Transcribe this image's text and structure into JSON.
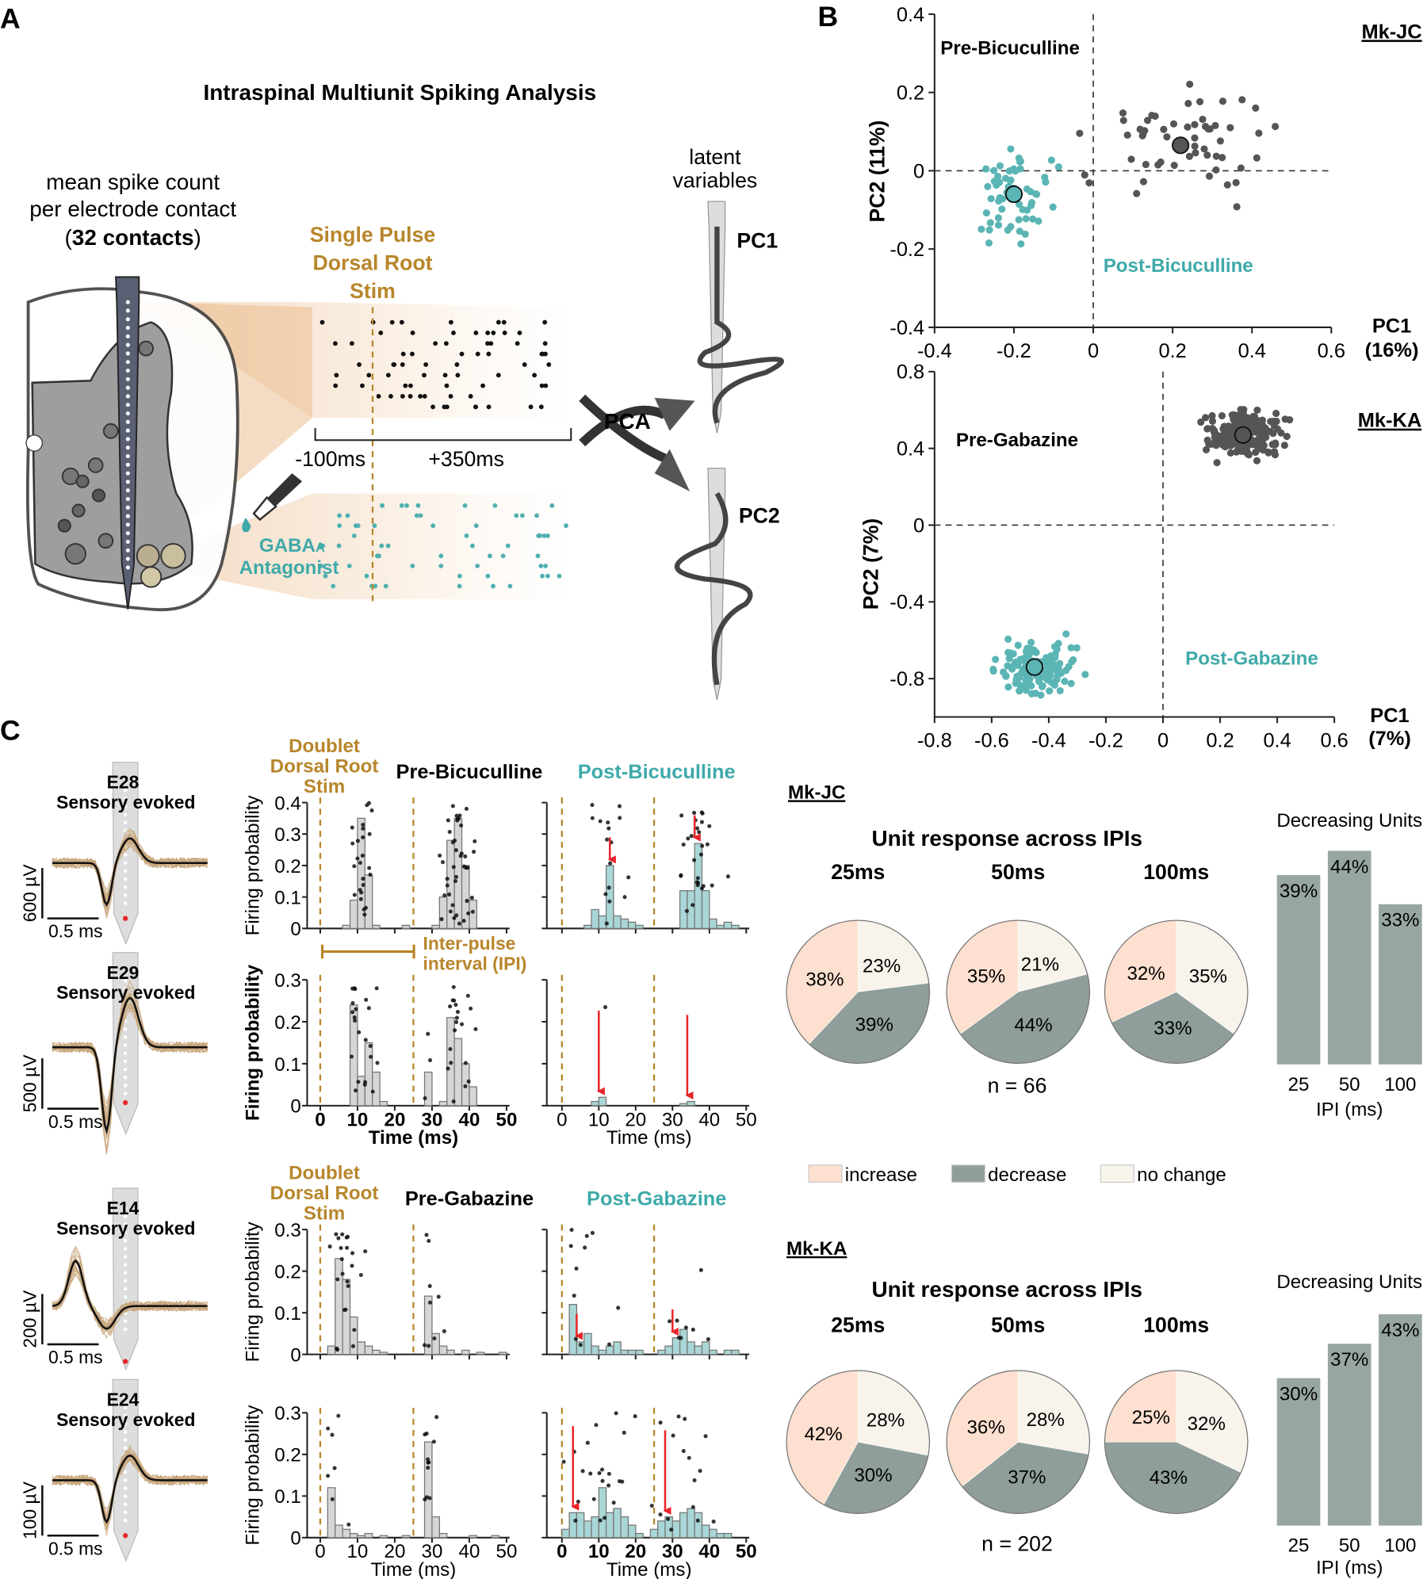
{
  "panel_labels": {
    "a": "A",
    "b": "B",
    "c": "C"
  },
  "panel_a": {
    "title": "Intraspinal Multiunit Spiking Analysis",
    "mean_line1": "mean spike count",
    "mean_line2": "per electrode contact",
    "contacts_prefix": "(",
    "contacts_bold": "32 contacts",
    "contacts_suffix": ")",
    "stim_lines": [
      "Single Pulse",
      "Dorsal Root",
      "Stim"
    ],
    "time_pre": "-100ms",
    "time_post": "+350ms",
    "antagonist_drug": "GABA",
    "antagonist_sub": "A",
    "antagonist_word": "Antagonist",
    "pca": "PCA",
    "latent_lines": [
      "latent",
      "variables"
    ],
    "pc1": "PC1",
    "pc2": "PC2"
  },
  "panel_c": {
    "doublet_lines": [
      "Doublet",
      "Dorsal Root",
      "Stim"
    ],
    "ipi_lines": [
      "Inter-pulse",
      "interval (IPI)"
    ],
    "firing_label": "Firing probability",
    "time_label": "Time (ms)",
    "waveforms": [
      {
        "electrode": "E28",
        "desc": "Sensory evoked",
        "voltage": "600 µV",
        "time_scale": "0.5 ms"
      },
      {
        "electrode": "E29",
        "desc": "Sensory evoked",
        "voltage": "500 µV",
        "time_scale": "0.5 ms"
      },
      {
        "electrode": "E14",
        "desc": "Sensory evoked",
        "voltage": "200 µV",
        "time_scale": "0.5 ms"
      },
      {
        "electrode": "E24",
        "desc": "Sensory evoked",
        "voltage": "100 µV",
        "time_scale": "0.5 ms"
      }
    ],
    "legend": [
      {
        "label": "increase",
        "color": "#fde0cf"
      },
      {
        "label": "decrease",
        "color": "#8f9e9b"
      },
      {
        "label": "no change",
        "color": "#f8f4ec"
      }
    ]
  },
  "colors": {
    "orange": "#b8862b",
    "teal": "#5bb5b5",
    "dark": "#555555",
    "bar": "#98a6a3",
    "red": "#e8262a"
  },
  "chart_data": [
    {
      "type": "scatter",
      "id": "mk-jc-pca",
      "subject": "Mk-JC",
      "xlabel": "PC1",
      "xlabel_pct": "(16%)",
      "ylabel": "PC2 (11%)",
      "xlim": [
        -0.4,
        0.6
      ],
      "ylim": [
        -0.4,
        0.4
      ],
      "xticks": [
        "-0.4",
        "-0.2",
        "0",
        "0.2",
        "0.4",
        "0.6"
      ],
      "yticks": [
        "-0.4",
        "-0.2",
        "0",
        "0.2",
        "0.4"
      ],
      "series": [
        {
          "name": "Pre-Bicuculline",
          "color": "#555555",
          "centroid": [
            0.22,
            0.065
          ],
          "n": 55,
          "spread": [
            0.14,
            0.09
          ]
        },
        {
          "name": "Post-Bicuculline",
          "color": "#5bb5b5",
          "centroid": [
            -0.2,
            -0.06
          ],
          "n": 62,
          "spread": [
            0.07,
            0.08
          ]
        }
      ]
    },
    {
      "type": "scatter",
      "id": "mk-ka-pca",
      "subject": "Mk-KA",
      "xlabel": "PC1",
      "xlabel_pct": "(7%)",
      "ylabel": "PC2 (7%)",
      "xlim": [
        -0.8,
        0.6
      ],
      "ylim": [
        -1.0,
        0.8
      ],
      "xticks": [
        "-0.8",
        "-0.6",
        "-0.4",
        "-0.2",
        "0",
        "0.2",
        "0.4",
        "0.6"
      ],
      "yticks": [
        "-0.8",
        "-0.4",
        "0",
        "0.4",
        "0.8"
      ],
      "series": [
        {
          "name": "Pre-Gabazine",
          "color": "#555555",
          "centroid": [
            0.28,
            0.47
          ],
          "n": 200,
          "spread": [
            0.09,
            0.08
          ]
        },
        {
          "name": "Post-Gabazine",
          "color": "#5bb5b5",
          "centroid": [
            -0.45,
            -0.74
          ],
          "n": 130,
          "spread": [
            0.1,
            0.09
          ]
        }
      ]
    },
    {
      "type": "bar",
      "id": "histograms",
      "bin_width_ms": 2,
      "xlim": [
        0,
        50
      ],
      "stim_ms": [
        0,
        25
      ],
      "xticks": [
        "0",
        "10",
        "20",
        "30",
        "40",
        "50"
      ],
      "panels": [
        {
          "title": "Pre-Bicuculline",
          "unit": "E28",
          "ymax": 0.4,
          "yticks": [
            "0",
            "0.1",
            "0.2",
            "0.3",
            "0.4"
          ],
          "condition": "pre",
          "bins": [
            [
              6,
              0.01
            ],
            [
              8,
              0.09
            ],
            [
              10,
              0.35
            ],
            [
              12,
              0.17
            ],
            [
              14,
              0.01
            ],
            [
              22,
              0.01
            ],
            [
              30,
              0.01
            ],
            [
              32,
              0.1
            ],
            [
              34,
              0.28
            ],
            [
              36,
              0.35
            ],
            [
              38,
              0.2
            ],
            [
              40,
              0.09
            ]
          ]
        },
        {
          "title": "Post-Bicuculline",
          "unit": "E28",
          "ymax": 0.4,
          "condition": "post",
          "arrows_ms": [
            13,
            36
          ],
          "bins": [
            [
              6,
              0.01
            ],
            [
              8,
              0.06
            ],
            [
              10,
              0.04
            ],
            [
              12,
              0.2
            ],
            [
              14,
              0.04
            ],
            [
              16,
              0.03
            ],
            [
              18,
              0.02
            ],
            [
              20,
              0.01
            ],
            [
              32,
              0.12
            ],
            [
              34,
              0.12
            ],
            [
              36,
              0.27
            ],
            [
              38,
              0.12
            ],
            [
              40,
              0.03
            ],
            [
              42,
              0.01
            ],
            [
              44,
              0.02
            ],
            [
              46,
              0.01
            ]
          ]
        },
        {
          "title": "Pre-Bicuculline",
          "unit": "E29",
          "ymax": 0.3,
          "yticks": [
            "0",
            "0.1",
            "0.2",
            "0.3"
          ],
          "condition": "pre",
          "bins": [
            [
              8,
              0.24
            ],
            [
              10,
              0.07
            ],
            [
              12,
              0.15
            ],
            [
              14,
              0.08
            ],
            [
              16,
              0.01
            ],
            [
              28,
              0.08
            ],
            [
              32,
              0.01
            ],
            [
              34,
              0.21
            ],
            [
              36,
              0.16
            ],
            [
              38,
              0.1
            ],
            [
              40,
              0.045
            ]
          ]
        },
        {
          "title": "Post-Bicuculline",
          "unit": "E29",
          "ymax": 0.3,
          "condition": "post",
          "arrows_ms": [
            10,
            34
          ],
          "bins": [
            [
              8,
              0.01
            ],
            [
              10,
              0.02
            ],
            [
              32,
              0.005
            ],
            [
              34,
              0.01
            ]
          ]
        },
        {
          "title": "Pre-Gabazine",
          "unit": "E14",
          "ymax": 0.3,
          "yticks": [
            "0",
            "0.1",
            "0.2",
            "0.3"
          ],
          "condition": "pre",
          "bins": [
            [
              2,
              0.02
            ],
            [
              4,
              0.23
            ],
            [
              6,
              0.18
            ],
            [
              8,
              0.09
            ],
            [
              10,
              0.03
            ],
            [
              12,
              0.02
            ],
            [
              14,
              0.01
            ],
            [
              16,
              0.005
            ],
            [
              28,
              0.14
            ],
            [
              30,
              0.05
            ],
            [
              32,
              0.02
            ],
            [
              34,
              0.01
            ],
            [
              38,
              0.01
            ],
            [
              42,
              0.005
            ],
            [
              48,
              0.005
            ]
          ]
        },
        {
          "title": "Post-Gabazine",
          "unit": "E14",
          "ymax": 0.3,
          "condition": "post",
          "arrows_ms": [
            4,
            30
          ],
          "bins": [
            [
              2,
              0.12
            ],
            [
              4,
              0.03
            ],
            [
              6,
              0.05
            ],
            [
              8,
              0.02
            ],
            [
              10,
              0.01
            ],
            [
              12,
              0.02
            ],
            [
              14,
              0.03
            ],
            [
              16,
              0.01
            ],
            [
              18,
              0.01
            ],
            [
              20,
              0.01
            ],
            [
              26,
              0.01
            ],
            [
              28,
              0.02
            ],
            [
              30,
              0.04
            ],
            [
              32,
              0.06
            ],
            [
              34,
              0.03
            ],
            [
              36,
              0.02
            ],
            [
              38,
              0.03
            ],
            [
              40,
              0.01
            ],
            [
              44,
              0.01
            ],
            [
              46,
              0.01
            ]
          ]
        },
        {
          "title": "Pre-Gabazine",
          "unit": "E24",
          "ymax": 0.3,
          "yticks": [
            "0",
            "0.1",
            "0.2",
            "0.3"
          ],
          "condition": "pre",
          "bins": [
            [
              2,
              0.12
            ],
            [
              4,
              0.03
            ],
            [
              6,
              0.02
            ],
            [
              8,
              0.01
            ],
            [
              10,
              0.005
            ],
            [
              12,
              0.01
            ],
            [
              16,
              0.005
            ],
            [
              22,
              0.005
            ],
            [
              28,
              0.23
            ],
            [
              30,
              0.05
            ],
            [
              32,
              0.01
            ],
            [
              40,
              0.005
            ],
            [
              46,
              0.005
            ]
          ]
        },
        {
          "title": "Post-Gabazine",
          "unit": "E24",
          "ymax": 0.3,
          "condition": "post",
          "arrows_ms": [
            3,
            28
          ],
          "bins": [
            [
              0,
              0.02
            ],
            [
              2,
              0.06
            ],
            [
              4,
              0.06
            ],
            [
              6,
              0.04
            ],
            [
              8,
              0.05
            ],
            [
              10,
              0.12
            ],
            [
              12,
              0.06
            ],
            [
              14,
              0.07
            ],
            [
              16,
              0.05
            ],
            [
              18,
              0.03
            ],
            [
              20,
              0.01
            ],
            [
              24,
              0.02
            ],
            [
              26,
              0.04
            ],
            [
              28,
              0.05
            ],
            [
              30,
              0.04
            ],
            [
              32,
              0.06
            ],
            [
              34,
              0.07
            ],
            [
              36,
              0.06
            ],
            [
              38,
              0.03
            ],
            [
              40,
              0.02
            ],
            [
              42,
              0.01
            ],
            [
              44,
              0.01
            ]
          ]
        }
      ]
    },
    {
      "type": "pie",
      "id": "mk-jc-pies",
      "subject": "Mk-JC",
      "title": "Unit response across IPIs",
      "n_label": "n = 66",
      "pies": [
        {
          "label": "25ms",
          "no_change": 23,
          "decrease": 39,
          "increase": 38
        },
        {
          "label": "50ms",
          "no_change": 21,
          "decrease": 44,
          "increase": 35
        },
        {
          "label": "100ms",
          "no_change": 35,
          "decrease": 33,
          "increase": 32
        }
      ]
    },
    {
      "type": "bar",
      "id": "mk-jc-decreasing",
      "title": "Decreasing Units",
      "xlabel": "IPI (ms)",
      "categories": [
        "25",
        "50",
        "100"
      ],
      "values": [
        39,
        44,
        33
      ],
      "value_labels": [
        "39%",
        "44%",
        "33%"
      ]
    },
    {
      "type": "pie",
      "id": "mk-ka-pies",
      "subject": "Mk-KA",
      "title": "Unit response across IPIs",
      "n_label": "n = 202",
      "pies": [
        {
          "label": "25ms",
          "no_change": 28,
          "decrease": 30,
          "increase": 42
        },
        {
          "label": "50ms",
          "no_change": 28,
          "decrease": 37,
          "increase": 36
        },
        {
          "label": "100ms",
          "no_change": 32,
          "decrease": 43,
          "increase": 25
        }
      ]
    },
    {
      "type": "bar",
      "id": "mk-ka-decreasing",
      "title": "Decreasing Units",
      "xlabel": "IPI (ms)",
      "categories": [
        "25",
        "50",
        "100"
      ],
      "values": [
        30,
        37,
        43
      ],
      "value_labels": [
        "30%",
        "37%",
        "43%"
      ]
    }
  ]
}
